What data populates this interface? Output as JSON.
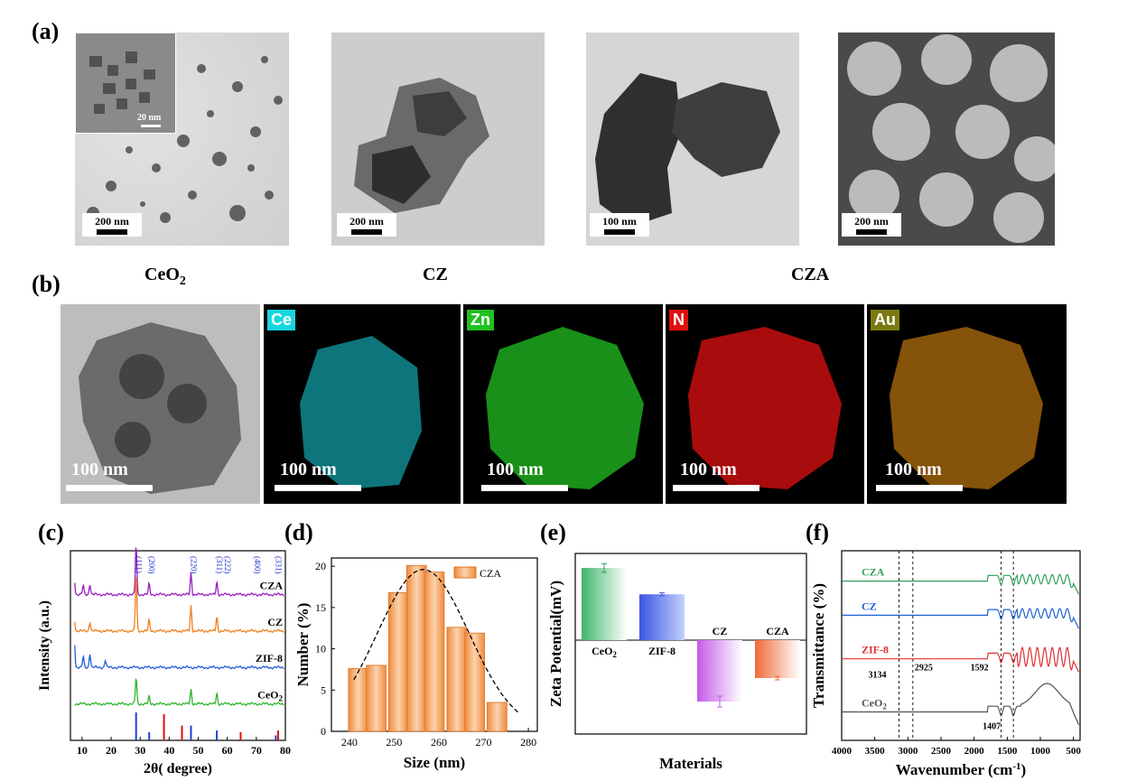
{
  "panel_a": {
    "label": "(a)",
    "images": [
      {
        "scale": "200 nm",
        "inset_scale": "20 nm"
      },
      {
        "scale": "200 nm"
      },
      {
        "scale": "100 nm"
      },
      {
        "scale": "200 nm"
      }
    ],
    "captions": {
      "ceo2_main": "CeO",
      "ceo2_sub": "2",
      "cz": "CZ",
      "cza": "CZA"
    }
  },
  "panel_b": {
    "label": "(b)",
    "maps": [
      {
        "tag": "",
        "scale": "100 nm",
        "color": "#9a9a9a"
      },
      {
        "tag": "Ce",
        "scale": "100 nm",
        "color": "#18d6e0"
      },
      {
        "tag": "Zn",
        "scale": "100 nm",
        "color": "#22c022"
      },
      {
        "tag": "N",
        "scale": "100 nm",
        "color": "#e01010"
      },
      {
        "tag": "Au",
        "scale": "100 nm",
        "color": "#e08a10"
      }
    ]
  },
  "panel_c": {
    "label": "(c)",
    "chart_data": {
      "type": "line",
      "xlabel": "2θ( degree)",
      "ylabel": "Intensity (a.u.)",
      "xlim": [
        6,
        80
      ],
      "xticks": [
        10,
        20,
        30,
        40,
        50,
        60,
        70,
        80
      ],
      "series": [
        {
          "name": "CZA",
          "color": "#9b1fbf",
          "offset": 4,
          "peaks": [
            [
              7.3,
              0.5
            ],
            [
              10.4,
              0.25
            ],
            [
              12.7,
              0.3
            ],
            [
              28.6,
              1.4
            ],
            [
              33.1,
              0.3
            ],
            [
              47.5,
              0.6
            ],
            [
              56.4,
              0.35
            ]
          ]
        },
        {
          "name": "CZ",
          "color": "#f07f1a",
          "offset": 3,
          "peaks": [
            [
              7.3,
              0.4
            ],
            [
              12.7,
              0.25
            ],
            [
              28.6,
              1.6
            ],
            [
              33.1,
              0.3
            ],
            [
              47.5,
              0.7
            ],
            [
              56.4,
              0.4
            ]
          ]
        },
        {
          "name": "ZIF-8",
          "color": "#1f5fd6",
          "offset": 2,
          "peaks": [
            [
              7.3,
              0.9
            ],
            [
              10.4,
              0.3
            ],
            [
              12.7,
              0.4
            ],
            [
              18.0,
              0.2
            ]
          ]
        },
        {
          "name": "CeO2",
          "color": "#2cb52c",
          "offset": 1,
          "peaks": [
            [
              28.6,
              0.75
            ],
            [
              33.1,
              0.2
            ],
            [
              47.5,
              0.4
            ],
            [
              56.4,
              0.3
            ]
          ]
        }
      ],
      "ref_lines": [
        {
          "x": 28.6,
          "h": 0.85,
          "color": "#1f3fd6"
        },
        {
          "x": 33.1,
          "h": 0.25,
          "color": "#1f3fd6"
        },
        {
          "x": 38.2,
          "h": 0.8,
          "color": "#e01010"
        },
        {
          "x": 44.4,
          "h": 0.45,
          "color": "#e01010"
        },
        {
          "x": 47.5,
          "h": 0.45,
          "color": "#1f3fd6"
        },
        {
          "x": 56.4,
          "h": 0.3,
          "color": "#1f3fd6"
        },
        {
          "x": 64.6,
          "h": 0.25,
          "color": "#e01010"
        },
        {
          "x": 77.5,
          "h": 0.3,
          "color": "#e01010"
        },
        {
          "x": 76.7,
          "h": 0.15,
          "color": "#1f3fd6"
        }
      ],
      "hkl": [
        {
          "x": 28.6,
          "text": "(111)"
        },
        {
          "x": 33.1,
          "text": "(200)"
        },
        {
          "x": 47.5,
          "text": "(220)"
        },
        {
          "x": 56.4,
          "text": "(311)"
        },
        {
          "x": 59.1,
          "text": "(222)"
        },
        {
          "x": 69.4,
          "text": "(400)"
        },
        {
          "x": 76.7,
          "text": "(331)"
        }
      ]
    }
  },
  "panel_d": {
    "label": "(d)",
    "chart_data": {
      "type": "bar",
      "xlabel": "Size (nm)",
      "ylabel": "Number (%)",
      "xlim": [
        236,
        282
      ],
      "ylim": [
        0,
        21
      ],
      "xticks": [
        240,
        250,
        260,
        270,
        280
      ],
      "yticks": [
        0,
        5,
        10,
        15,
        20
      ],
      "legend": "CZA",
      "legend_position": "top-right",
      "bars": [
        [
          242,
          7.6
        ],
        [
          246,
          8.0
        ],
        [
          251,
          16.8
        ],
        [
          255,
          20.1
        ],
        [
          259,
          19.3
        ],
        [
          264,
          12.6
        ],
        [
          268,
          11.9
        ],
        [
          273,
          3.5
        ]
      ],
      "fit_curve": true
    }
  },
  "panel_e": {
    "label": "(e)",
    "chart_data": {
      "type": "bar",
      "ylabel": "Zeta Potential(mV)",
      "xlabel": "Materials",
      "categories": [
        "CeO2",
        "ZIF-8",
        "CZ",
        "CZA"
      ],
      "cat_labels": [
        "CeO",
        "ZIF-8",
        "CZ",
        "CZA"
      ],
      "values": [
        20,
        12.7,
        -17,
        -10.5
      ],
      "errors": [
        1.2,
        0.4,
        1.5,
        0.5
      ],
      "ylim": [
        -26,
        24
      ]
    }
  },
  "panel_f": {
    "label": "(f)",
    "chart_data": {
      "type": "line",
      "xlabel": "Wavenumber (cm",
      "xlabel_sup": "-1",
      "xlabel_end": ")",
      "ylabel": "Transmittance (%)",
      "xlim": [
        4000,
        400
      ],
      "xticks": [
        4000,
        3500,
        3000,
        2500,
        2000,
        1500,
        1000,
        500
      ],
      "series": [
        {
          "name": "CZA",
          "color": "#2ea05a",
          "base": 0.84
        },
        {
          "name": "CZ",
          "color": "#1f60d0",
          "base": 0.66
        },
        {
          "name": "ZIF-8",
          "color": "#e03030",
          "base": 0.43
        },
        {
          "name": "CeO2",
          "color": "#505050",
          "base": 0.15
        }
      ],
      "annotations": [
        {
          "x": 3134,
          "text": "3134"
        },
        {
          "x": 2925,
          "text": "2925"
        },
        {
          "x": 1592,
          "text": "1592"
        },
        {
          "x": 1407,
          "text": "1407"
        }
      ],
      "dashed_lines": [
        3134,
        2925,
        1592,
        1407
      ]
    }
  }
}
